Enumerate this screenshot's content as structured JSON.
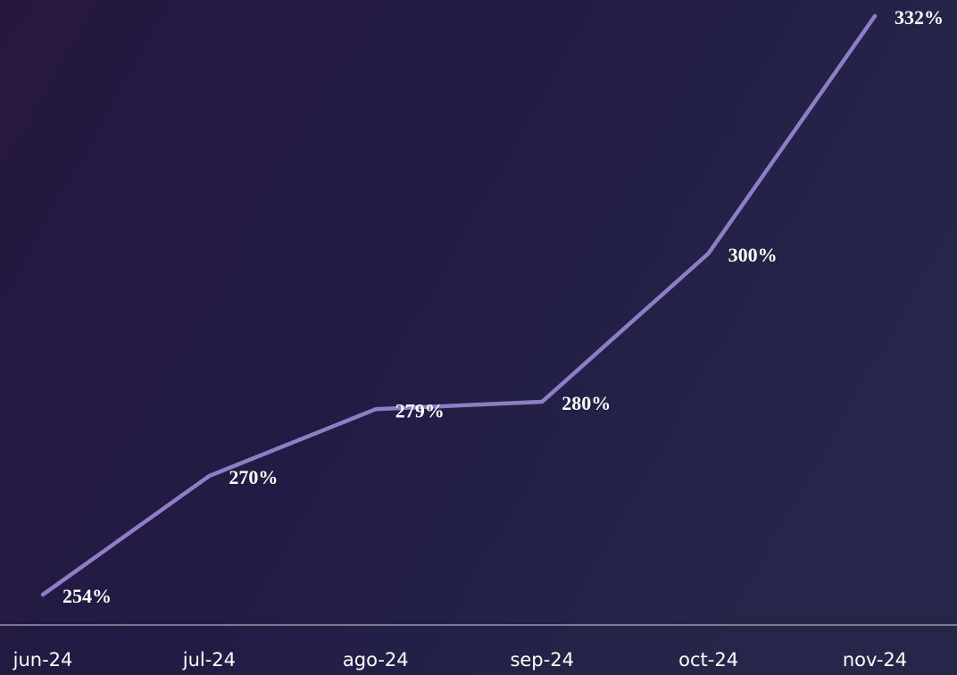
{
  "chart_data": {
    "type": "line",
    "categories": [
      "jun-24",
      "jul-24",
      "ago-24",
      "sep-24",
      "oct-24",
      "nov-24"
    ],
    "series": [
      {
        "color": "#8e7fc4",
        "values": [
          254,
          270,
          279,
          280,
          300,
          332
        ],
        "value_labels": [
          "254%",
          "270%",
          "279%",
          "280%",
          "300%",
          "332%"
        ]
      }
    ]
  }
}
